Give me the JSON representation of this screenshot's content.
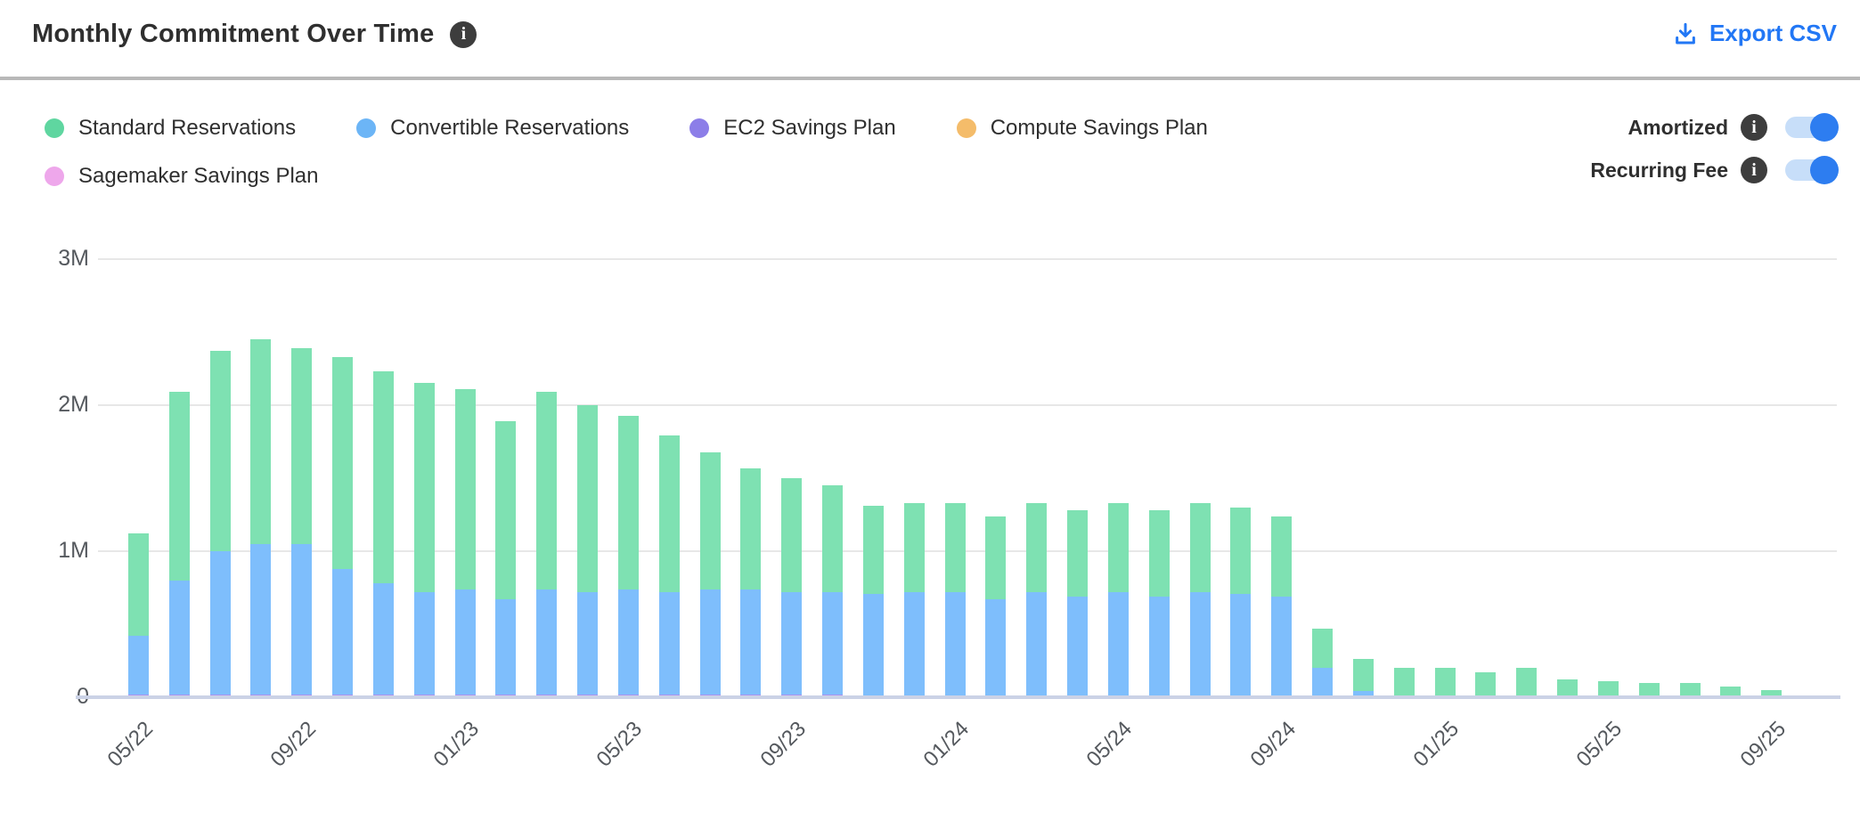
{
  "header": {
    "title": "Monthly Commitment Over Time",
    "title_info_icon": "info-icon",
    "export_label": "Export CSV"
  },
  "toggles": [
    {
      "label": "Amortized",
      "state": "on"
    },
    {
      "label": "Recurring Fee",
      "state": "on"
    }
  ],
  "colors": {
    "accent_blue": "#2277f5",
    "toggle_track": "#c7def9",
    "toggle_knob": "#2d7df0",
    "gridline": "#e7e7e7",
    "axis_baseline": "#cbd2e6",
    "axis_text": "#55595e",
    "header_divider": "#b8b8b8"
  },
  "chart_data": {
    "type": "bar",
    "stacked": true,
    "grid": true,
    "legend_position": "top-left",
    "value_unit": "M",
    "ylim": [
      0,
      3
    ],
    "ytick_labels": [
      "0",
      "1M",
      "2M",
      "3M"
    ],
    "xtick_every": 4,
    "categories": [
      "05/22",
      "06/22",
      "07/22",
      "08/22",
      "09/22",
      "10/22",
      "11/22",
      "12/22",
      "01/23",
      "02/23",
      "03/23",
      "04/23",
      "05/23",
      "06/23",
      "07/23",
      "08/23",
      "09/23",
      "10/23",
      "11/23",
      "12/23",
      "01/24",
      "02/24",
      "03/24",
      "04/24",
      "05/24",
      "06/24",
      "07/24",
      "08/24",
      "09/24",
      "10/24",
      "11/24",
      "12/24",
      "01/25",
      "02/25",
      "03/25",
      "04/25",
      "05/25",
      "06/25",
      "07/25",
      "08/25",
      "09/25",
      "10/25"
    ],
    "visible_xtick_labels": [
      "05/22",
      "09/22",
      "01/23",
      "05/23",
      "09/23",
      "01/24",
      "05/24",
      "09/24",
      "01/25",
      "05/25",
      "09/25"
    ],
    "series": [
      {
        "name": "EC2 Savings Plan",
        "dot_color": "#8c7ee8",
        "bar_color": "#ab94f1",
        "values": [
          0.02,
          0.02,
          0.02,
          0.02,
          0.02,
          0.02,
          0.02,
          0.02,
          0.02,
          0.02,
          0.02,
          0.02,
          0.02,
          0.02,
          0.02,
          0.02,
          0.02,
          0.02,
          0.01,
          0,
          0,
          0,
          0,
          0,
          0,
          0,
          0,
          0,
          0,
          0,
          0,
          0,
          0,
          0,
          0,
          0,
          0,
          0,
          0,
          0,
          0,
          0
        ]
      },
      {
        "name": "Convertible Reservations",
        "dot_color": "#6cb5f6",
        "bar_color": "#7ebefc",
        "values": [
          0.4,
          0.78,
          0.98,
          1.03,
          1.03,
          0.86,
          0.76,
          0.7,
          0.72,
          0.65,
          0.72,
          0.7,
          0.72,
          0.7,
          0.72,
          0.72,
          0.7,
          0.7,
          0.7,
          0.72,
          0.72,
          0.67,
          0.72,
          0.69,
          0.72,
          0.69,
          0.72,
          0.71,
          0.69,
          0.2,
          0.04,
          0,
          0,
          0,
          0,
          0,
          0,
          0,
          0,
          0,
          0,
          0
        ]
      },
      {
        "name": "Standard Reservations",
        "dot_color": "#5fd6a0",
        "bar_color": "#7ee1b2",
        "values": [
          0.7,
          1.29,
          1.37,
          1.4,
          1.34,
          1.45,
          1.45,
          1.43,
          1.37,
          1.22,
          1.35,
          1.28,
          1.19,
          1.07,
          0.94,
          0.83,
          0.78,
          0.73,
          0.6,
          0.61,
          0.61,
          0.57,
          0.61,
          0.59,
          0.61,
          0.59,
          0.61,
          0.59,
          0.55,
          0.27,
          0.22,
          0.2,
          0.2,
          0.17,
          0.2,
          0.12,
          0.11,
          0.1,
          0.1,
          0.075,
          0.05,
          0.015
        ]
      },
      {
        "name": "Compute Savings Plan",
        "dot_color": "#f4bc6a",
        "bar_color": "#f4bc6a",
        "values": [
          0,
          0,
          0,
          0,
          0,
          0,
          0,
          0,
          0,
          0,
          0,
          0,
          0,
          0,
          0,
          0,
          0,
          0,
          0,
          0,
          0,
          0,
          0,
          0,
          0,
          0,
          0,
          0,
          0,
          0,
          0,
          0,
          0,
          0,
          0,
          0,
          0,
          0,
          0,
          0,
          0,
          0
        ]
      },
      {
        "name": "Sagemaker Savings Plan",
        "dot_color": "#eea7eb",
        "bar_color": "#eea7eb",
        "values": [
          0,
          0,
          0,
          0,
          0,
          0,
          0,
          0,
          0,
          0,
          0,
          0,
          0,
          0,
          0,
          0,
          0,
          0,
          0,
          0,
          0,
          0,
          0,
          0,
          0,
          0,
          0,
          0,
          0,
          0,
          0,
          0,
          0,
          0,
          0,
          0,
          0,
          0,
          0,
          0,
          0,
          0
        ]
      }
    ],
    "legend_order": [
      "Standard Reservations",
      "Convertible Reservations",
      "EC2 Savings Plan",
      "Compute Savings Plan",
      "Sagemaker Savings Plan"
    ],
    "legend_rows": [
      [
        "Standard Reservations",
        "Convertible Reservations",
        "EC2 Savings Plan",
        "Compute Savings Plan"
      ],
      [
        "Sagemaker Savings Plan"
      ]
    ]
  }
}
